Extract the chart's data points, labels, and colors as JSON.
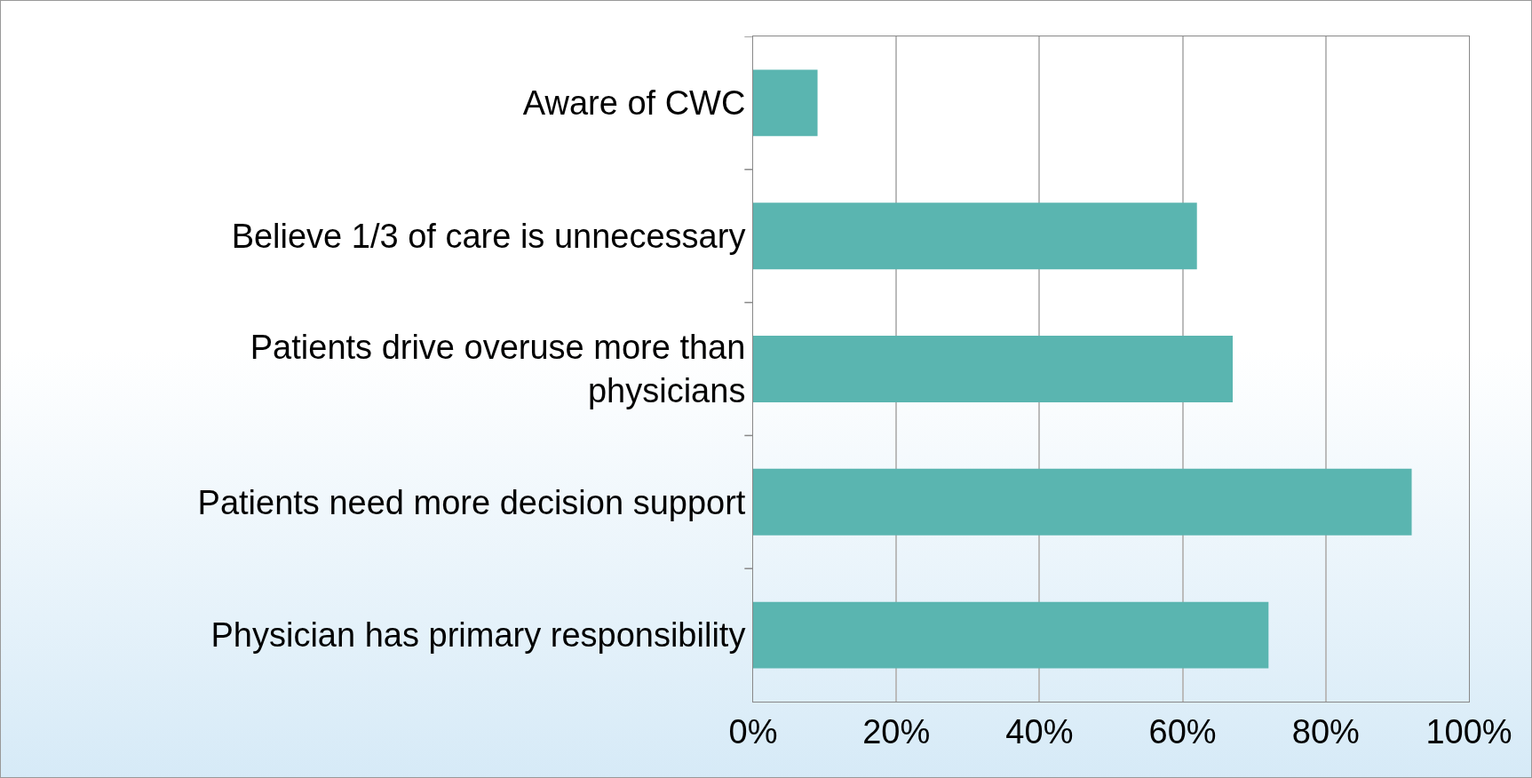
{
  "chart_data": {
    "type": "bar",
    "orientation": "horizontal",
    "categories": [
      "Aware of CWC",
      "Believe 1/3 of care is unnecessary",
      "Patients drive overuse more than physicians",
      "Patients need more decision support",
      "Physician has primary responsibility"
    ],
    "values": [
      9,
      62,
      67,
      92,
      72
    ],
    "color": "#5ab5b0",
    "xlim": [
      0,
      100
    ],
    "xticks": [
      {
        "value": 0,
        "label": "0%"
      },
      {
        "value": 20,
        "label": "20%"
      },
      {
        "value": 40,
        "label": "40%"
      },
      {
        "value": 60,
        "label": "60%"
      },
      {
        "value": 80,
        "label": "80%"
      },
      {
        "value": 100,
        "label": "100%"
      }
    ],
    "grid": "x"
  }
}
